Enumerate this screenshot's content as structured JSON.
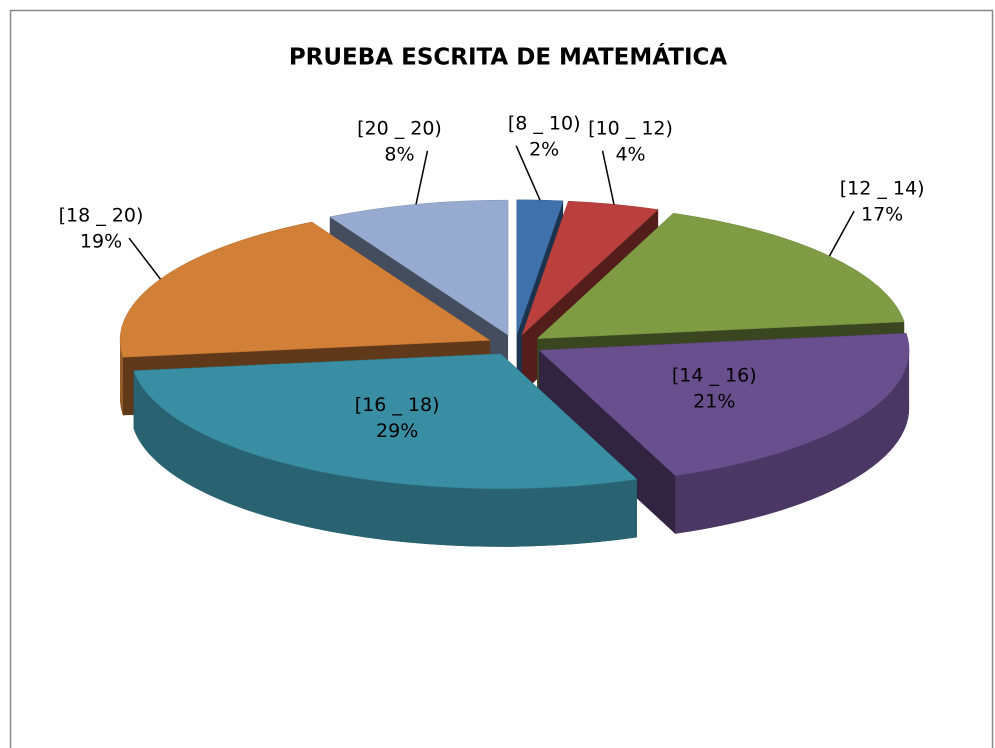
{
  "chart_data": {
    "type": "pie",
    "title": "PRUEBA ESCRITA DE MATEMÁTICA",
    "categories": [
      "[8 _ 10)",
      "[10 _ 12)",
      "[12 _ 14)",
      "[14 _ 16)",
      "[16 _ 18)",
      "[18 _ 20)",
      "[20 _ 20)"
    ],
    "values": [
      2,
      4,
      17,
      21,
      29,
      19,
      8
    ],
    "value_labels": [
      "2%",
      "4%",
      "17%",
      "21%",
      "29%",
      "19%",
      "8%"
    ],
    "colors": [
      "#3f72ad",
      "#b9403d",
      "#7f9c45",
      "#6a4f8e",
      "#3a8ea3",
      "#d27f37",
      "#97abd0"
    ]
  }
}
